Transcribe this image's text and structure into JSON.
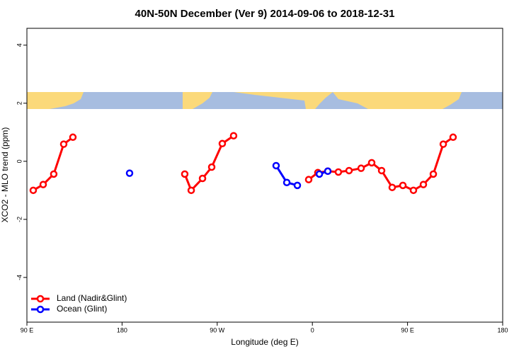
{
  "chart_data": {
    "type": "line",
    "title": "40N-50N December (Ver 9)   2014-09-06 to 2018-12-31",
    "x_label": "Longitude (deg E)",
    "y_label": "XCO2 - MLO trend (ppm)",
    "xlim": [
      90,
      540
    ],
    "xticks": [
      {
        "value": 90,
        "label": "90 E"
      },
      180,
      {
        "value": 270,
        "label": "90 W"
      },
      {
        "value": 360,
        "label": "0"
      },
      {
        "value": 450,
        "label": "90 E"
      },
      {
        "value": 540,
        "label": "180"
      }
    ],
    "ylim": [
      -5.54,
      4.58
    ],
    "yticks": [
      -4,
      -2,
      0,
      2,
      4
    ],
    "legend": "bottom-left",
    "series": [
      {
        "name": "Land (Nadir&Glint)",
        "color": "#ff0000",
        "x": [
          96,
          105.4,
          115.4,
          124.8,
          133.5,
          null,
          239.3,
          245.4,
          256.1,
          264.8,
          274.8,
          285.5,
          null,
          356.5,
          365.2,
          374.6,
          384.6,
          394.7,
          406.1,
          416.1,
          425.5,
          435.5,
          445.6,
          455.6,
          465.0,
          474.4,
          483.8,
          493.1
        ],
        "values": [
          -1.0,
          -0.8,
          -0.44,
          0.59,
          0.83,
          null,
          -0.44,
          -1.0,
          -0.59,
          -0.2,
          0.61,
          0.88,
          null,
          -0.63,
          -0.39,
          -0.34,
          -0.37,
          -0.32,
          -0.24,
          -0.05,
          -0.32,
          -0.9,
          -0.83,
          -1.0,
          -0.8,
          -0.44,
          0.59,
          0.83
        ]
      },
      {
        "name": "Ocean (Glint)",
        "color": "#0000ff",
        "x": [
          187.1,
          null,
          325.7,
          335.8,
          345.8,
          null,
          366.6,
          374.6
        ],
        "values": [
          -0.41,
          null,
          -0.15,
          -0.73,
          -0.83,
          null,
          -0.44,
          -0.34
        ]
      }
    ]
  }
}
